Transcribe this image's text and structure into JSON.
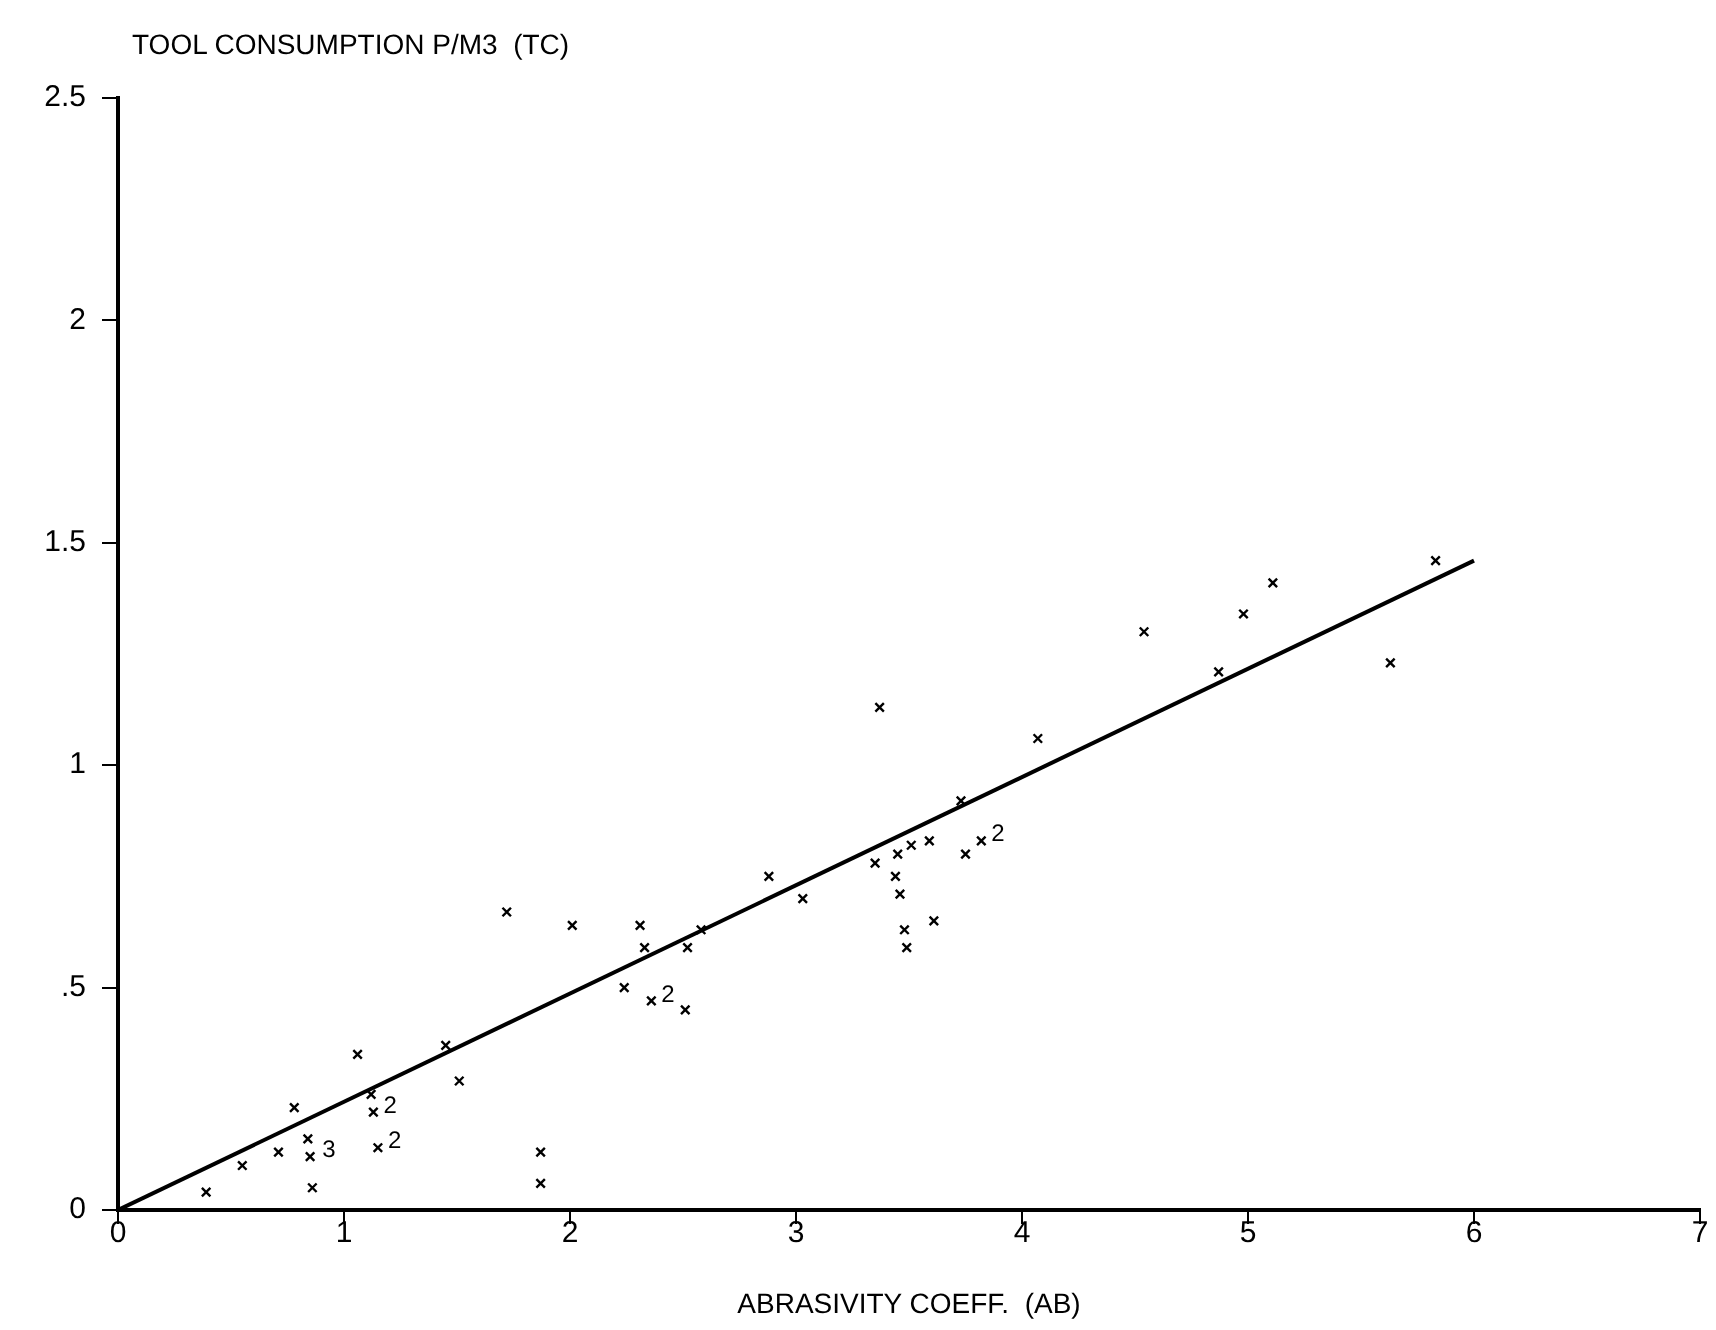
{
  "chart_data": {
    "type": "scatter",
    "xlabel": "ABRASIVITY COEFF.  (AB)",
    "ylabel": "TOOL CONSUMPTION P/M3  (TC)",
    "xlim": [
      0,
      7
    ],
    "xticks": [
      0,
      1,
      2,
      3,
      4,
      5,
      6,
      7
    ],
    "ylim": [
      0,
      2.5
    ],
    "yticks": [
      0,
      {
        "value": 0.5,
        "label": ".5"
      },
      1,
      1.5,
      2,
      2.5
    ],
    "grid": false,
    "legend": false,
    "marker": "cross",
    "series": [
      {
        "color": "#000000",
        "x": [
          0.39,
          0.55,
          0.71,
          0.84,
          0.85,
          0.86,
          0.78,
          1.06,
          1.12,
          1.13,
          1.15,
          1.45,
          1.51,
          1.72,
          1.87,
          1.87,
          2.01,
          2.31,
          2.33,
          2.24,
          2.36,
          2.51,
          2.52,
          2.58,
          2.88,
          3.03,
          3.37,
          3.35,
          3.45,
          3.51,
          3.59,
          3.73,
          3.75,
          3.82,
          3.44,
          3.46,
          3.48,
          3.49,
          3.61,
          4.07,
          4.54,
          4.87,
          4.98,
          5.11,
          5.63,
          5.83
        ],
        "values": [
          0.04,
          0.1,
          0.13,
          0.16,
          0.12,
          0.05,
          0.23,
          0.35,
          0.26,
          0.22,
          0.14,
          0.37,
          0.29,
          0.67,
          0.13,
          0.06,
          0.64,
          0.64,
          0.59,
          0.5,
          0.47,
          0.45,
          0.59,
          0.63,
          0.75,
          0.7,
          1.13,
          0.78,
          0.8,
          0.82,
          0.83,
          0.92,
          0.8,
          0.83,
          0.75,
          0.71,
          0.63,
          0.59,
          0.65,
          1.06,
          1.3,
          1.21,
          1.34,
          1.41,
          1.23,
          1.46
        ]
      },
      {
        "type": "line",
        "color": "#000000",
        "marker": "none",
        "x": [
          0,
          6
        ],
        "values": [
          0,
          1.46
        ]
      }
    ],
    "annotations": [
      {
        "text": "3",
        "x": 0.86,
        "y": 0.12
      },
      {
        "text": "2",
        "x": 1.13,
        "y": 0.22
      },
      {
        "text": "2",
        "x": 1.15,
        "y": 0.14
      },
      {
        "text": "2",
        "x": 2.36,
        "y": 0.47
      },
      {
        "text": "2",
        "x": 3.82,
        "y": 0.83
      }
    ]
  }
}
